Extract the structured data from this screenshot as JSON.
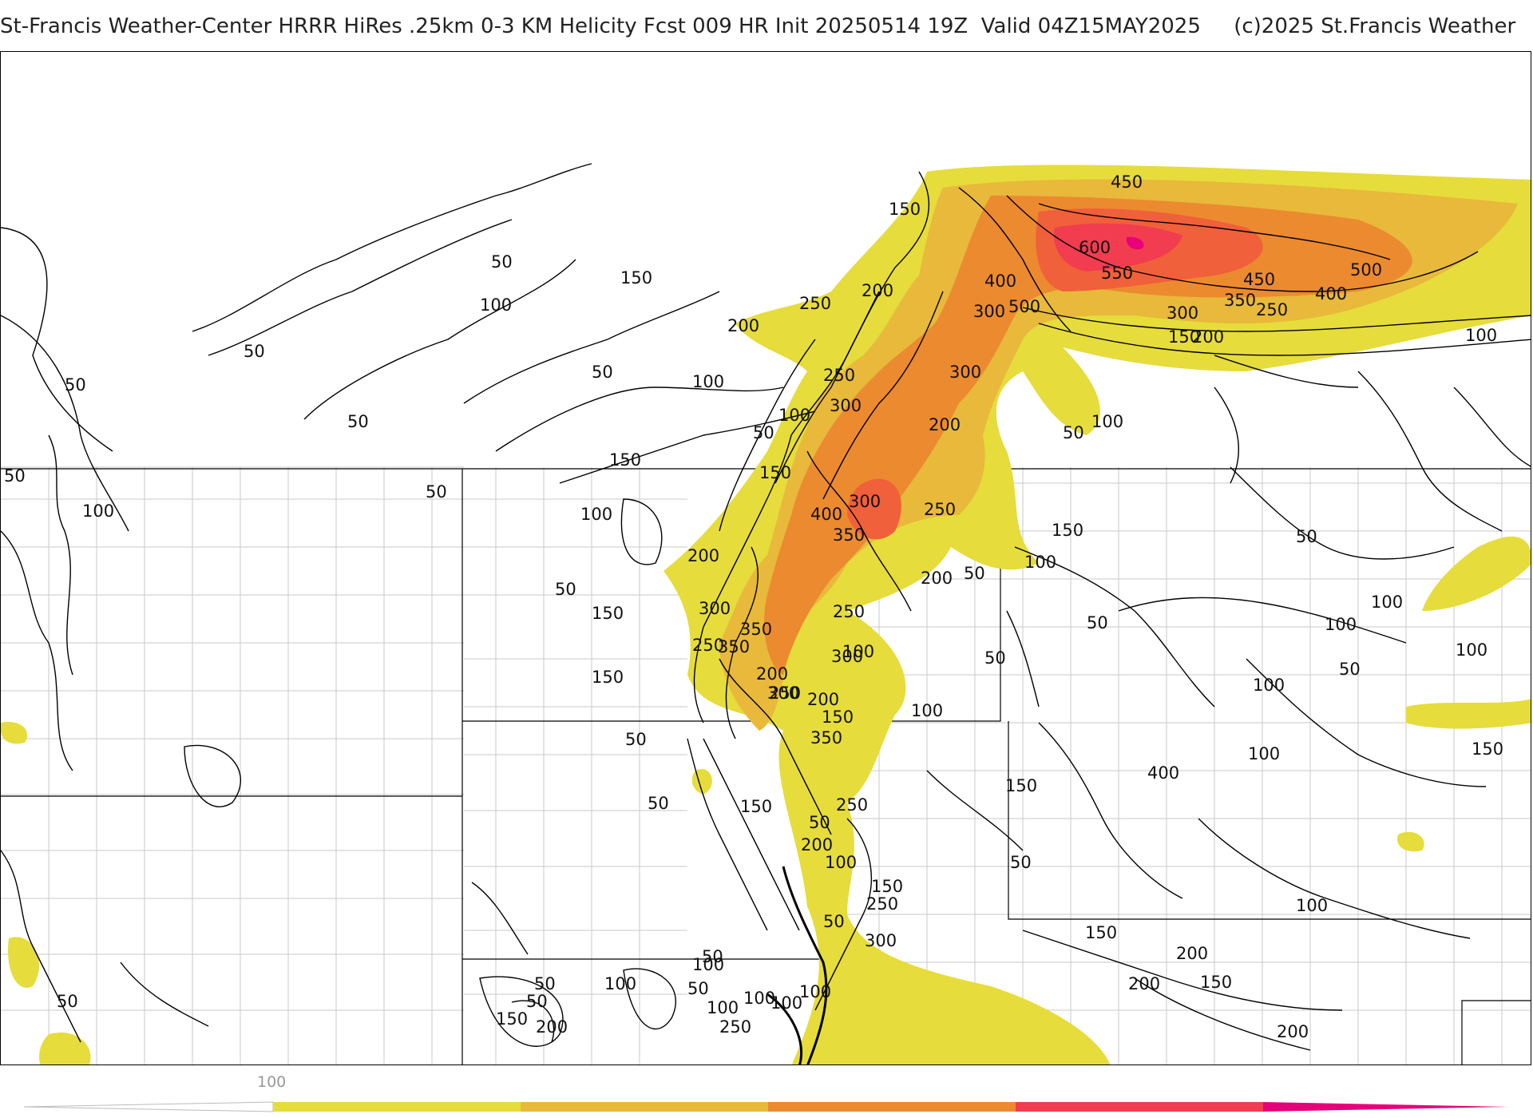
{
  "header": {
    "title": "St-Francis Weather-Center HRRR HiRes .25km 0-3 KM Helicity Fcst 009 HR Init 20250514 19Z  Valid 04Z15MAY2025     (c)2025 St.Francis Weather"
  },
  "legend": {
    "tick_label": "100",
    "colors": [
      "#ffffff",
      "#e6dc3c",
      "#e8b93a",
      "#ec8a30",
      "#f23c50",
      "#e8007a"
    ]
  },
  "colors": {
    "band_100_200": "#e6dc3c",
    "band_200_300": "#e8b93a",
    "band_300_450": "#ec8a30",
    "band_450_550": "#f0603a",
    "band_550_plus": "#f23c50",
    "peak": "#e8007a",
    "contour": "#000000",
    "county_lines": "#c8c8c8"
  },
  "contour_labels": [
    "450",
    "150",
    "600",
    "550",
    "400",
    "500",
    "450",
    "500",
    "400",
    "350",
    "300",
    "250",
    "200",
    "150",
    "100",
    "50",
    "150",
    "100",
    "250",
    "200",
    "50",
    "200",
    "50",
    "100",
    "300",
    "50",
    "250",
    "300",
    "200",
    "300",
    "50",
    "100",
    "50",
    "50",
    "100",
    "150",
    "50",
    "100",
    "300",
    "250",
    "150",
    "400",
    "350",
    "200",
    "150",
    "100",
    "50",
    "50",
    "50",
    "100",
    "200",
    "50",
    "150",
    "300",
    "250",
    "350",
    "350",
    "250",
    "100",
    "150",
    "300",
    "50",
    "50",
    "100",
    "50",
    "100",
    "100",
    "250",
    "200",
    "50",
    "100",
    "100",
    "200",
    "150",
    "300",
    "350",
    "400",
    "150",
    "100",
    "150",
    "50",
    "150",
    "50",
    "250",
    "200",
    "100",
    "50",
    "150",
    "250",
    "100",
    "50",
    "300",
    "150",
    "100",
    "200",
    "200",
    "150",
    "200",
    "50",
    "50",
    "100",
    "50",
    "50",
    "100",
    "100",
    "50",
    "100",
    "100",
    "150",
    "200",
    "250"
  ]
}
